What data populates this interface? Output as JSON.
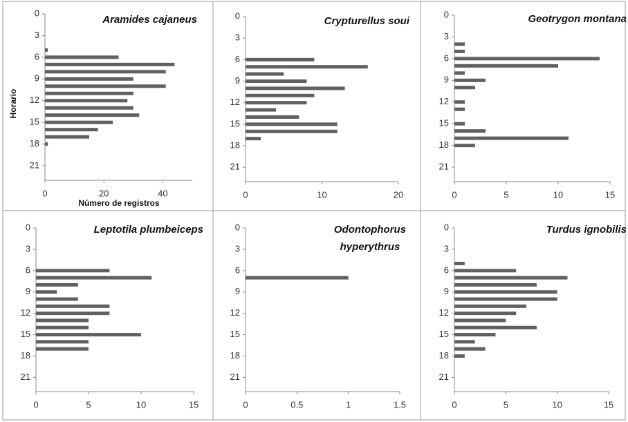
{
  "chart_data": [
    {
      "type": "hbar",
      "title": "Aramides cajaneus",
      "xlabel": "Número de registros",
      "ylabel": "Horario",
      "color": "#606060",
      "y": [
        5,
        6,
        7,
        8,
        9,
        10,
        11,
        12,
        13,
        14,
        15,
        16,
        17,
        18
      ],
      "values": [
        1,
        25,
        44,
        41,
        30,
        41,
        30,
        28,
        30,
        32,
        23,
        18,
        15,
        1
      ],
      "xlim": [
        0,
        50
      ],
      "xticks": [
        0,
        20,
        40
      ],
      "ylim": [
        0,
        23
      ],
      "yticks": [
        0,
        3,
        6,
        9,
        12,
        15,
        18,
        21
      ]
    },
    {
      "type": "hbar",
      "title": "Crypturellus soui",
      "color": "#606060",
      "y": [
        6,
        7,
        8,
        9,
        10,
        11,
        12,
        13,
        14,
        15,
        16,
        17
      ],
      "values": [
        9,
        16,
        5,
        8,
        13,
        9,
        8,
        4,
        7,
        12,
        12,
        2
      ],
      "xlim": [
        0,
        20
      ],
      "xticks": [
        0,
        10,
        20
      ],
      "ylim": [
        0,
        23
      ],
      "yticks": [
        0,
        3,
        6,
        9,
        12,
        15,
        18,
        21
      ]
    },
    {
      "type": "hbar",
      "title": "Geotrygon montana",
      "color": "#606060",
      "y": [
        4,
        5,
        6,
        7,
        8,
        9,
        10,
        12,
        13,
        15,
        16,
        17,
        18
      ],
      "values": [
        1,
        1,
        14,
        10,
        1,
        3,
        2,
        1,
        1,
        1,
        3,
        11,
        2
      ],
      "xlim": [
        0,
        15
      ],
      "xticks": [
        0,
        5,
        10,
        15
      ],
      "ylim": [
        0,
        23
      ],
      "yticks": [
        0,
        3,
        6,
        9,
        12,
        15,
        18,
        21
      ]
    },
    {
      "type": "hbar",
      "title": "Leptotila plumbeiceps",
      "color": "#606060",
      "y": [
        6,
        7,
        8,
        9,
        10,
        11,
        12,
        13,
        14,
        15,
        16,
        17
      ],
      "values": [
        7,
        11,
        4,
        2,
        4,
        7,
        7,
        5,
        5,
        10,
        5,
        5
      ],
      "xlim": [
        0,
        15
      ],
      "xticks": [
        0,
        5,
        10,
        15
      ],
      "ylim": [
        0,
        23
      ],
      "yticks": [
        0,
        3,
        6,
        9,
        12,
        15,
        18,
        21
      ]
    },
    {
      "type": "hbar",
      "title": "Odontophorus hyperythrus",
      "color": "#606060",
      "y": [
        7
      ],
      "values": [
        1
      ],
      "xlim": [
        0,
        1.5
      ],
      "xticks": [
        0,
        0.5,
        1,
        1.5
      ],
      "ylim": [
        0,
        23
      ],
      "yticks": [
        0,
        3,
        6,
        9,
        12,
        15,
        18,
        21
      ]
    },
    {
      "type": "hbar",
      "title": "Turdus ignobilis",
      "color": "#606060",
      "y": [
        5,
        6,
        7,
        8,
        9,
        10,
        11,
        12,
        13,
        14,
        15,
        16,
        17,
        18
      ],
      "values": [
        1,
        6,
        11,
        8,
        10,
        10,
        7,
        6,
        5,
        8,
        4,
        2,
        3,
        1
      ],
      "xlim": [
        0,
        15
      ],
      "xticks": [
        0,
        5,
        10,
        15
      ],
      "ylim": [
        0,
        23
      ],
      "yticks": [
        0,
        3,
        6,
        9,
        12,
        15,
        18,
        21
      ]
    }
  ]
}
